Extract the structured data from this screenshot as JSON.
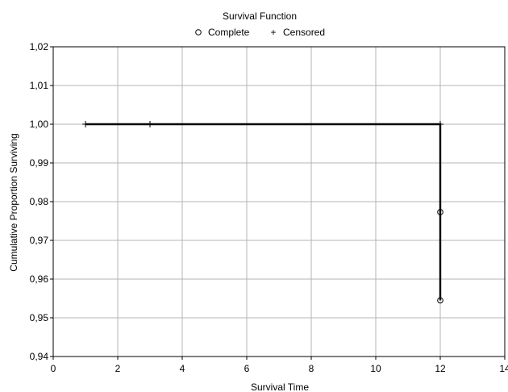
{
  "chart_data": {
    "type": "line",
    "title": "Survival Function",
    "xlabel": "Survival Time",
    "ylabel": "Cumulative Proportion Surviving",
    "xlim": [
      0,
      14
    ],
    "ylim": [
      0.94,
      1.02
    ],
    "x_ticks": [
      "0",
      "2",
      "4",
      "6",
      "8",
      "10",
      "12",
      "14"
    ],
    "y_ticks": [
      "0,94",
      "0,95",
      "0,96",
      "0,97",
      "0,98",
      "0,99",
      "1,00",
      "1,01",
      "1,02"
    ],
    "x_tick_values": [
      0,
      2,
      4,
      6,
      8,
      10,
      12,
      14
    ],
    "y_tick_values": [
      0.94,
      0.95,
      0.96,
      0.97,
      0.98,
      0.99,
      1.0,
      1.01,
      1.02
    ],
    "grid": true,
    "legend": {
      "placement": "top",
      "entries": [
        {
          "symbol": "○",
          "label": "Complete"
        },
        {
          "symbol": "+",
          "label": "Censored"
        }
      ]
    },
    "series": [
      {
        "step_points": [
          {
            "x": 1,
            "y": 1.0
          },
          {
            "x": 12,
            "y": 1.0
          },
          {
            "x": 12,
            "y": 0.9545
          }
        ],
        "complete_points": [
          {
            "x": 12,
            "y": 0.9773
          },
          {
            "x": 12,
            "y": 0.9545
          }
        ],
        "censored_points": [
          {
            "x": 1,
            "y": 1.0
          },
          {
            "x": 3,
            "y": 1.0
          },
          {
            "x": 12,
            "y": 1.0
          }
        ]
      }
    ]
  }
}
